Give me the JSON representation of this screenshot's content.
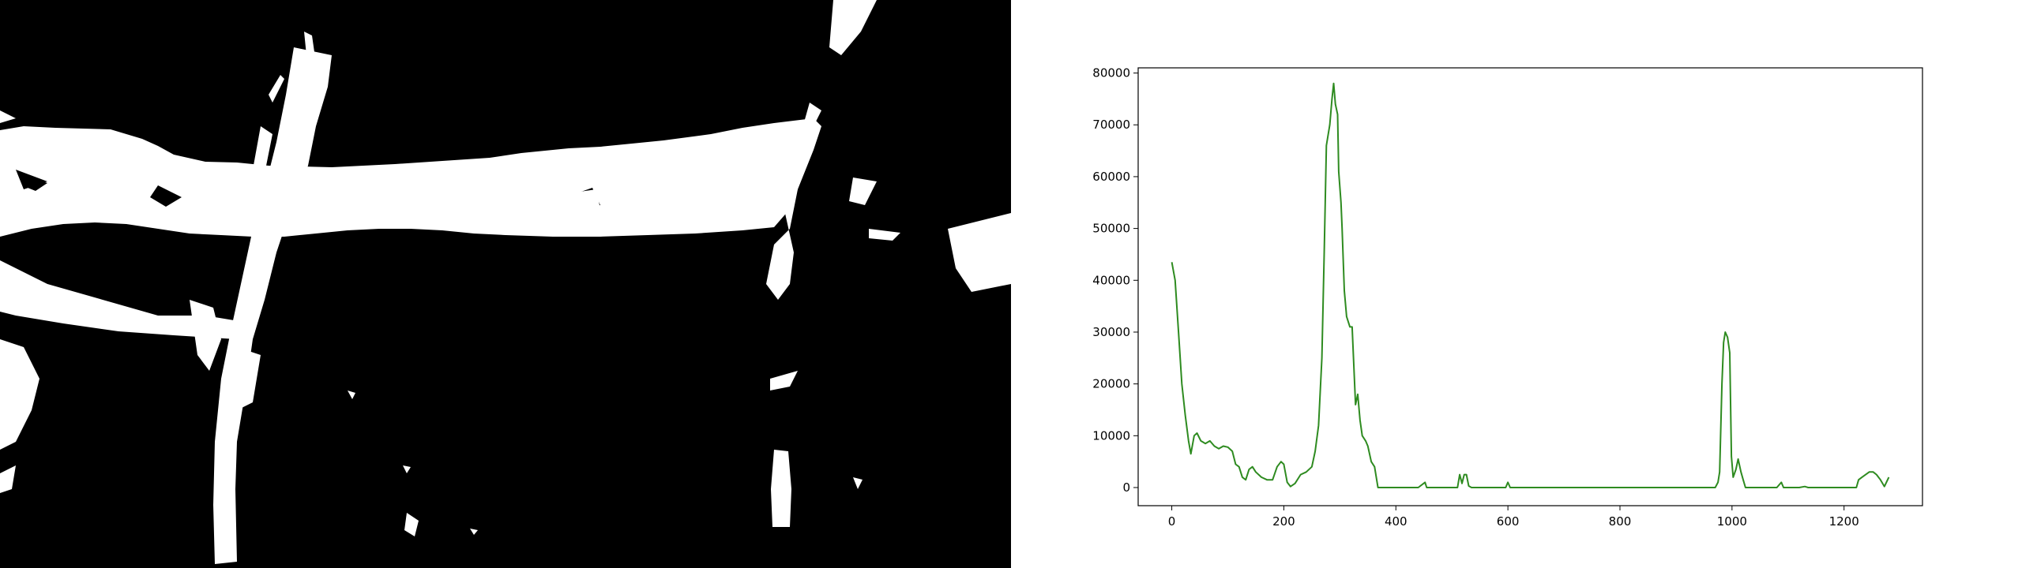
{
  "colors": {
    "mask_background": "#000000",
    "mask_foreground": "#ffffff",
    "series_line": "#2e8b20",
    "axes": "#000000",
    "chart_background": "#ffffff"
  },
  "chart_data": {
    "type": "line",
    "title": "",
    "xlabel": "",
    "ylabel": "",
    "xlim": [
      -60,
      1340
    ],
    "ylim": [
      -3500,
      81000
    ],
    "xticks": [
      0,
      200,
      400,
      600,
      800,
      1000,
      1200
    ],
    "yticks": [
      0,
      10000,
      20000,
      30000,
      40000,
      50000,
      60000,
      70000,
      80000
    ],
    "grid": false,
    "legend": "none",
    "series": [
      {
        "color": "#2e8b20",
        "points": [
          [
            0,
            43500
          ],
          [
            6,
            40000
          ],
          [
            12,
            30000
          ],
          [
            18,
            20000
          ],
          [
            24,
            14000
          ],
          [
            30,
            9000
          ],
          [
            34,
            6500
          ],
          [
            40,
            10000
          ],
          [
            45,
            10500
          ],
          [
            52,
            9000
          ],
          [
            60,
            8500
          ],
          [
            68,
            9000
          ],
          [
            76,
            8000
          ],
          [
            84,
            7500
          ],
          [
            92,
            8000
          ],
          [
            100,
            7800
          ],
          [
            108,
            7000
          ],
          [
            114,
            4500
          ],
          [
            120,
            4000
          ],
          [
            126,
            2000
          ],
          [
            132,
            1500
          ],
          [
            138,
            3500
          ],
          [
            144,
            4000
          ],
          [
            150,
            3000
          ],
          [
            160,
            2000
          ],
          [
            170,
            1500
          ],
          [
            180,
            1500
          ],
          [
            188,
            4000
          ],
          [
            195,
            5000
          ],
          [
            200,
            4500
          ],
          [
            206,
            1000
          ],
          [
            212,
            200
          ],
          [
            220,
            800
          ],
          [
            230,
            2500
          ],
          [
            240,
            3000
          ],
          [
            250,
            4000
          ],
          [
            256,
            7000
          ],
          [
            262,
            12000
          ],
          [
            268,
            25000
          ],
          [
            272,
            45000
          ],
          [
            276,
            66000
          ],
          [
            282,
            70000
          ],
          [
            286,
            75000
          ],
          [
            289,
            78000
          ],
          [
            292,
            74000
          ],
          [
            296,
            72000
          ],
          [
            298,
            61000
          ],
          [
            302,
            55000
          ],
          [
            304,
            50000
          ],
          [
            308,
            38000
          ],
          [
            312,
            33000
          ],
          [
            318,
            31000
          ],
          [
            322,
            31000
          ],
          [
            328,
            16000
          ],
          [
            332,
            18000
          ],
          [
            336,
            13000
          ],
          [
            340,
            10000
          ],
          [
            346,
            9000
          ],
          [
            350,
            8000
          ],
          [
            356,
            5000
          ],
          [
            362,
            4000
          ],
          [
            368,
            0
          ],
          [
            380,
            0
          ],
          [
            400,
            0
          ],
          [
            440,
            0
          ],
          [
            452,
            1000
          ],
          [
            455,
            0
          ],
          [
            500,
            0
          ],
          [
            510,
            0
          ],
          [
            514,
            2500
          ],
          [
            518,
            800
          ],
          [
            522,
            2500
          ],
          [
            526,
            2500
          ],
          [
            530,
            300
          ],
          [
            535,
            0
          ],
          [
            596,
            0
          ],
          [
            600,
            1000
          ],
          [
            604,
            0
          ],
          [
            700,
            0
          ],
          [
            780,
            0
          ],
          [
            900,
            0
          ],
          [
            970,
            0
          ],
          [
            975,
            1000
          ],
          [
            978,
            3000
          ],
          [
            982,
            20000
          ],
          [
            985,
            28000
          ],
          [
            988,
            30000
          ],
          [
            992,
            29000
          ],
          [
            996,
            26000
          ],
          [
            999,
            6000
          ],
          [
            1002,
            2000
          ],
          [
            1007,
            3500
          ],
          [
            1011,
            5500
          ],
          [
            1016,
            3000
          ],
          [
            1020,
            1500
          ],
          [
            1024,
            0
          ],
          [
            1080,
            0
          ],
          [
            1088,
            1000
          ],
          [
            1092,
            0
          ],
          [
            1120,
            0
          ],
          [
            1130,
            200
          ],
          [
            1136,
            0
          ],
          [
            1200,
            0
          ],
          [
            1222,
            0
          ],
          [
            1226,
            1500
          ],
          [
            1232,
            2000
          ],
          [
            1245,
            3000
          ],
          [
            1252,
            3000
          ],
          [
            1258,
            2500
          ],
          [
            1265,
            1500
          ],
          [
            1272,
            200
          ],
          [
            1280,
            2000
          ]
        ]
      }
    ]
  }
}
